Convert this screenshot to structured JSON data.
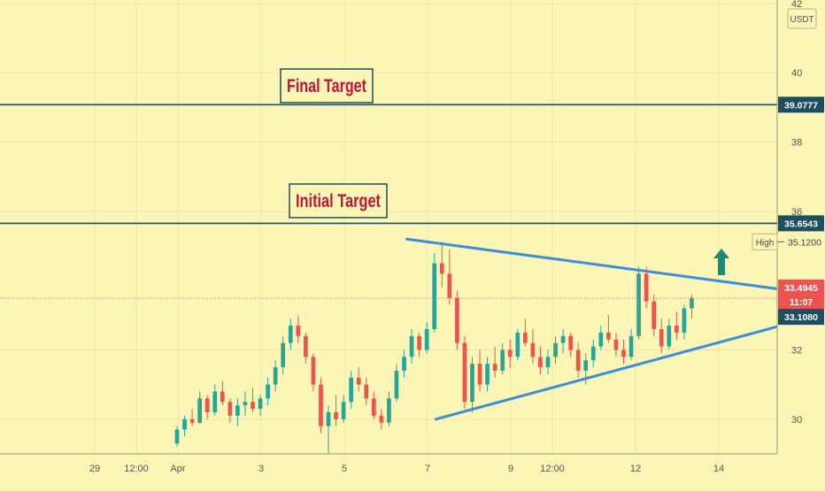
{
  "chart_data": {
    "type": "candlestick",
    "symbol_currency": "USDT",
    "y_axis": {
      "ylim": [
        29.0,
        42.1
      ],
      "ticks": [
        {
          "value": 42,
          "label": "42"
        },
        {
          "value": 40,
          "label": "40"
        },
        {
          "value": 38,
          "label": "38"
        },
        {
          "value": 36,
          "label": "36"
        },
        {
          "value": 32,
          "label": "32"
        },
        {
          "value": 30,
          "label": "30"
        }
      ]
    },
    "x_axis": {
      "ticks": [
        {
          "day": -1,
          "label": "29"
        },
        {
          "day": 0,
          "label": "12:00"
        },
        {
          "day": 1,
          "label": "Apr"
        },
        {
          "day": 3,
          "label": "3"
        },
        {
          "day": 5,
          "label": "5"
        },
        {
          "day": 7,
          "label": "7"
        },
        {
          "day": 9,
          "label": "9"
        },
        {
          "day": 10,
          "label": "12:00"
        },
        {
          "day": 12,
          "label": "12"
        },
        {
          "day": 14,
          "label": "14"
        }
      ]
    },
    "horizontal_levels": [
      {
        "name": "Final Target",
        "price": 39.0777,
        "label": "39.0777",
        "color": "#1d4f5e"
      },
      {
        "name": "Initial Target",
        "price": 35.6543,
        "label": "35.6543",
        "color": "#1d4f5e"
      }
    ],
    "annotations": [
      {
        "text": "Final Target",
        "color": "#c8103a"
      },
      {
        "text": "Initial Target",
        "color": "#c8103a"
      }
    ],
    "price_labels": {
      "high_label": "High",
      "high_value": "35.1200",
      "last_price": "33.4945",
      "countdown": "11:07",
      "low_marker": "33.1080"
    },
    "triangle": {
      "upper": {
        "from": [
          6.5,
          35.2
        ],
        "to": [
          15.8,
          33.7
        ]
      },
      "lower": {
        "from": [
          7.2,
          30.0
        ],
        "to": [
          15.8,
          32.8
        ]
      },
      "color": "#3a8fdd"
    },
    "arrow": {
      "direction": "up",
      "color": "#1a8a7a"
    },
    "colors": {
      "up": "#26a69a",
      "down": "#ef5350",
      "background": "#fbf5b6",
      "grid": "#efe7a2"
    },
    "candles": [
      [
        29.3,
        29.8,
        29.2,
        29.7
      ],
      [
        29.7,
        30.1,
        29.5,
        30.0
      ],
      [
        30.0,
        30.3,
        29.8,
        29.9
      ],
      [
        29.9,
        30.8,
        29.85,
        30.6
      ],
      [
        30.6,
        30.7,
        30.0,
        30.2
      ],
      [
        30.2,
        31.0,
        30.1,
        30.8
      ],
      [
        30.8,
        31.1,
        30.4,
        30.5
      ],
      [
        30.5,
        30.6,
        29.9,
        30.1
      ],
      [
        30.1,
        30.6,
        29.8,
        30.4
      ],
      [
        30.4,
        30.8,
        30.1,
        30.5
      ],
      [
        30.5,
        30.9,
        30.2,
        30.3
      ],
      [
        30.3,
        30.7,
        30.1,
        30.6
      ],
      [
        30.6,
        31.2,
        30.4,
        31.0
      ],
      [
        31.0,
        31.7,
        30.8,
        31.5
      ],
      [
        31.5,
        32.4,
        31.3,
        32.2
      ],
      [
        32.2,
        32.9,
        32.0,
        32.7
      ],
      [
        32.7,
        33.0,
        32.2,
        32.4
      ],
      [
        32.4,
        32.5,
        31.6,
        31.8
      ],
      [
        31.8,
        31.9,
        30.8,
        31.0
      ],
      [
        31.0,
        31.2,
        29.6,
        29.8
      ],
      [
        29.8,
        30.4,
        29.0,
        30.2
      ],
      [
        30.2,
        30.7,
        29.8,
        30.0
      ],
      [
        30.0,
        30.7,
        29.9,
        30.5
      ],
      [
        30.5,
        31.4,
        30.3,
        31.2
      ],
      [
        31.2,
        31.5,
        30.8,
        31.0
      ],
      [
        31.0,
        31.2,
        30.4,
        30.6
      ],
      [
        30.6,
        30.8,
        30.0,
        30.1
      ],
      [
        30.1,
        30.3,
        29.7,
        29.9
      ],
      [
        29.9,
        30.8,
        29.8,
        30.6
      ],
      [
        30.6,
        31.6,
        30.5,
        31.4
      ],
      [
        31.4,
        32.0,
        31.2,
        31.8
      ],
      [
        31.8,
        32.6,
        31.6,
        32.4
      ],
      [
        32.4,
        32.5,
        31.8,
        32.0
      ],
      [
        32.0,
        32.8,
        31.9,
        32.6
      ],
      [
        32.6,
        34.8,
        32.5,
        34.5
      ],
      [
        34.5,
        35.12,
        33.8,
        34.2
      ],
      [
        34.2,
        34.9,
        33.3,
        33.5
      ],
      [
        33.5,
        33.7,
        32.0,
        32.2
      ],
      [
        32.2,
        32.4,
        30.3,
        30.5
      ],
      [
        30.5,
        31.8,
        30.2,
        31.6
      ],
      [
        31.6,
        32.0,
        30.8,
        31.0
      ],
      [
        31.0,
        31.8,
        30.8,
        31.6
      ],
      [
        31.6,
        32.1,
        31.2,
        31.4
      ],
      [
        31.4,
        32.2,
        31.3,
        32.0
      ],
      [
        32.0,
        32.3,
        31.5,
        31.8
      ],
      [
        31.8,
        32.6,
        31.7,
        32.5
      ],
      [
        32.5,
        32.9,
        32.1,
        32.2
      ],
      [
        32.2,
        32.6,
        31.6,
        31.8
      ],
      [
        31.8,
        32.1,
        31.3,
        31.5
      ],
      [
        31.5,
        32.0,
        31.3,
        31.8
      ],
      [
        31.8,
        32.4,
        31.6,
        32.2
      ],
      [
        32.2,
        32.6,
        31.9,
        32.4
      ],
      [
        32.4,
        32.5,
        31.8,
        32.0
      ],
      [
        32.0,
        32.2,
        31.2,
        31.4
      ],
      [
        31.4,
        31.9,
        31.0,
        31.7
      ],
      [
        31.7,
        32.3,
        31.5,
        32.1
      ],
      [
        32.1,
        32.7,
        32.0,
        32.5
      ],
      [
        32.5,
        33.0,
        32.2,
        32.3
      ],
      [
        32.3,
        32.5,
        31.8,
        32.0
      ],
      [
        32.0,
        32.3,
        31.6,
        31.8
      ],
      [
        31.8,
        32.6,
        31.7,
        32.4
      ],
      [
        32.4,
        34.4,
        32.3,
        34.2
      ],
      [
        34.2,
        34.4,
        33.2,
        33.4
      ],
      [
        33.4,
        33.6,
        32.4,
        32.6
      ],
      [
        32.6,
        32.9,
        31.9,
        32.1
      ],
      [
        32.1,
        32.9,
        32.0,
        32.7
      ],
      [
        32.7,
        33.1,
        32.3,
        32.5
      ],
      [
        32.5,
        33.3,
        32.3,
        33.2
      ],
      [
        33.2,
        33.6,
        32.9,
        33.49
      ]
    ]
  }
}
